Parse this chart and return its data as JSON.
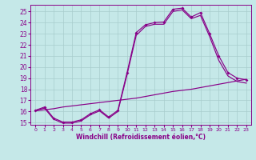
{
  "xlabel": "Windchill (Refroidissement éolien,°C)",
  "bg_color": "#c5e8e8",
  "line_color": "#880088",
  "grid_color": "#a8cccc",
  "xlim": [
    -0.5,
    23.5
  ],
  "ylim": [
    14.8,
    25.6
  ],
  "yticks": [
    15,
    16,
    17,
    18,
    19,
    20,
    21,
    22,
    23,
    24,
    25
  ],
  "xticks": [
    0,
    1,
    2,
    3,
    4,
    5,
    6,
    7,
    8,
    9,
    10,
    11,
    12,
    13,
    14,
    15,
    16,
    17,
    18,
    19,
    20,
    21,
    22,
    23
  ],
  "line1_x": [
    0,
    1,
    2,
    3,
    4,
    5,
    6,
    7,
    8,
    9,
    10,
    11,
    12,
    13,
    14,
    15,
    16,
    17,
    18,
    19,
    20,
    21,
    22,
    23
  ],
  "line1_y": [
    16.1,
    16.4,
    15.4,
    15.05,
    15.05,
    15.25,
    15.8,
    16.15,
    15.5,
    16.1,
    19.5,
    23.1,
    23.8,
    24.0,
    24.05,
    25.2,
    25.3,
    24.5,
    24.9,
    23.0,
    21.0,
    19.5,
    19.0,
    18.85
  ],
  "line2_x": [
    0,
    1,
    2,
    3,
    4,
    5,
    6,
    7,
    8,
    9,
    10,
    11,
    12,
    13,
    14,
    15,
    16,
    17,
    18,
    19,
    20,
    21,
    22,
    23
  ],
  "line2_y": [
    16.1,
    16.3,
    15.3,
    14.95,
    14.95,
    15.15,
    15.7,
    16.05,
    15.4,
    16.0,
    19.3,
    22.85,
    23.65,
    23.85,
    23.85,
    25.0,
    25.15,
    24.35,
    24.65,
    22.75,
    20.6,
    19.2,
    18.7,
    18.55
  ],
  "line3_x": [
    0,
    1,
    2,
    3,
    4,
    5,
    6,
    7,
    8,
    9,
    10,
    11,
    12,
    13,
    14,
    15,
    16,
    17,
    18,
    19,
    20,
    21,
    22,
    23
  ],
  "line3_y": [
    16.05,
    16.15,
    16.25,
    16.4,
    16.5,
    16.6,
    16.7,
    16.8,
    16.9,
    17.0,
    17.1,
    17.2,
    17.35,
    17.5,
    17.65,
    17.8,
    17.9,
    18.0,
    18.15,
    18.3,
    18.45,
    18.6,
    18.75,
    18.9
  ]
}
